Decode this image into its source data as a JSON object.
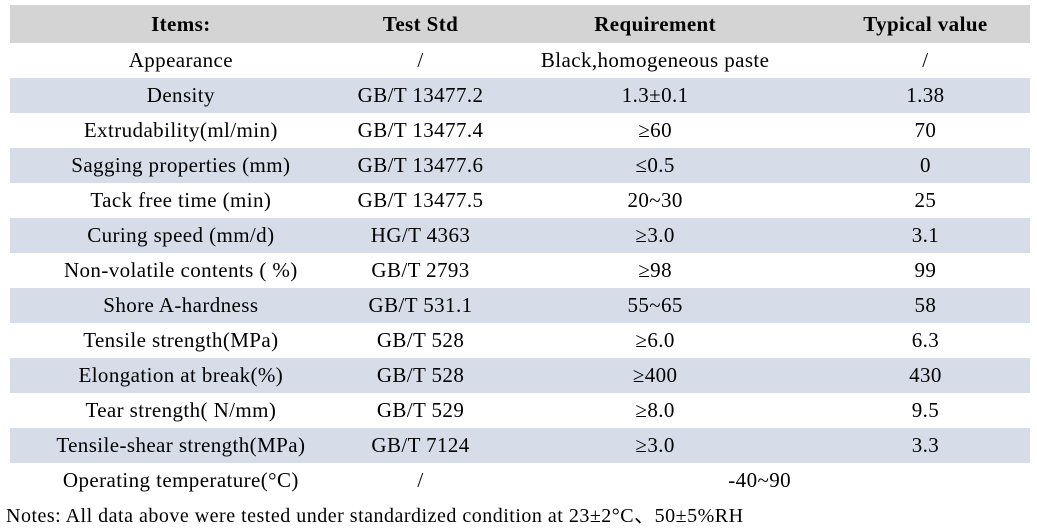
{
  "colors": {
    "header_bg": "#d4d4d4",
    "stripe_bg": "#d6dde9",
    "text": "#000000",
    "page_bg": "#ffffff"
  },
  "table": {
    "headers": {
      "items": "Items:",
      "test_std": "Test Std",
      "requirement": "Requirement",
      "typical_value": "Typical value"
    },
    "rows": [
      {
        "item": "Appearance",
        "test_std": "/",
        "requirement": "Black,homogeneous paste",
        "typical_value": "/"
      },
      {
        "item": "Density",
        "test_std": "GB/T 13477.2",
        "requirement": "1.3±0.1",
        "typical_value": "1.38"
      },
      {
        "item": "Extrudability(ml/min)",
        "test_std": "GB/T 13477.4",
        "requirement": "≥60",
        "typical_value": "70"
      },
      {
        "item": "Sagging properties (mm)",
        "test_std": "GB/T 13477.6",
        "requirement": "≤0.5",
        "typical_value": "0"
      },
      {
        "item": "Tack free time (min)",
        "test_std": "GB/T 13477.5",
        "requirement": "20~30",
        "typical_value": "25"
      },
      {
        "item": "Curing speed (mm/d)",
        "test_std": "HG/T 4363",
        "requirement": "≥3.0",
        "typical_value": "3.1"
      },
      {
        "item": "Non-volatile contents ( %)",
        "test_std": "GB/T 2793",
        "requirement": "≥98",
        "typical_value": "99"
      },
      {
        "item": "Shore A-hardness",
        "test_std": "GB/T 531.1",
        "requirement": "55~65",
        "typical_value": "58"
      },
      {
        "item": "Tensile strength(MPa)",
        "test_std": "GB/T 528",
        "requirement": "≥6.0",
        "typical_value": "6.3"
      },
      {
        "item": "Elongation at break(%)",
        "test_std": "GB/T 528",
        "requirement": "≥400",
        "typical_value": "430"
      },
      {
        "item": "Tear strength( N/mm)",
        "test_std": "GB/T 529",
        "requirement": "≥8.0",
        "typical_value": "9.5"
      },
      {
        "item": "Tensile-shear strength(MPa)",
        "test_std": "GB/T 7124",
        "requirement": "≥3.0",
        "typical_value": "3.3"
      }
    ],
    "last_row": {
      "item": "Operating temperature(°C)",
      "test_std": "/",
      "merged_value": "-40~90"
    }
  },
  "notes": "Notes: All data above were tested under standardized condition at 23±2°C、50±5%RH"
}
